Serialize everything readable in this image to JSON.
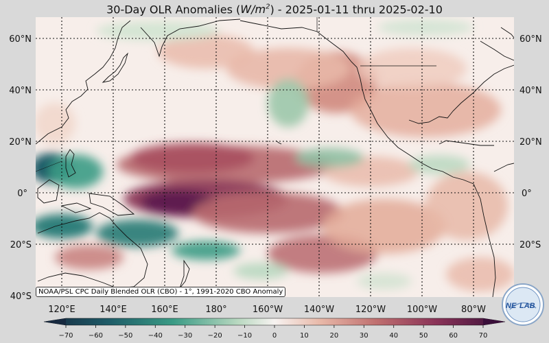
{
  "title": {
    "prefix": "30-Day OLR Anomalies (",
    "unit_base": "W/m",
    "unit_exp": "2",
    "suffix": ") - 2025-01-11 thru 2025-02-10"
  },
  "map": {
    "lat_labels": [
      "60°N",
      "40°N",
      "20°N",
      "0°",
      "20°S",
      "40°S"
    ],
    "lon_labels": [
      "120°E",
      "140°E",
      "160°E",
      "180°",
      "160°W",
      "140°W",
      "120°W",
      "100°W",
      "80°W"
    ],
    "gridlines": "dotted",
    "colors": {
      "strong_positive": "#5e1a4f",
      "positive": "#a8505f",
      "weak_positive": "#e8b8a8",
      "neutral": "#f7eeea",
      "weak_negative": "#b8d8c0",
      "negative": "#3a9b85",
      "strong_negative": "#1f5c68",
      "land_outline": "#111111"
    }
  },
  "source_note": "NOAA/PSL CPC Daily Blended OLR (CBO) - 1°, 1991-2020 CBO Anomaly",
  "logo": {
    "text_left": "NE",
    "text_right": "LAB"
  },
  "colorbar": {
    "ticks": [
      "−70",
      "−60",
      "−50",
      "−40",
      "−30",
      "−20",
      "−10",
      "0",
      "10",
      "20",
      "30",
      "40",
      "50",
      "60",
      "70"
    ],
    "min": -70,
    "max": 70,
    "extend": "both"
  }
}
